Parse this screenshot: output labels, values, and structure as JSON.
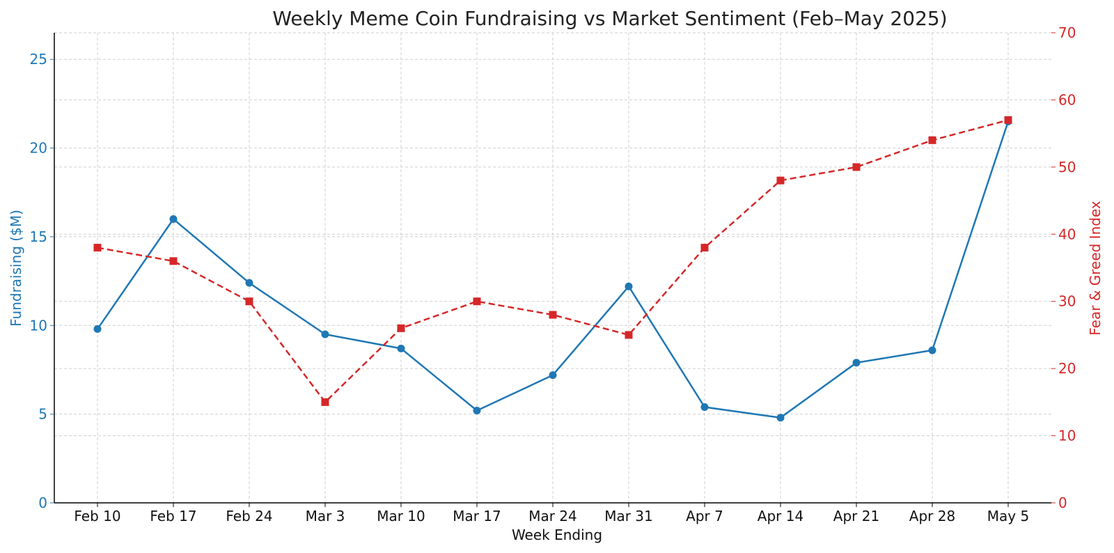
{
  "chart_data": {
    "type": "line",
    "title": "Weekly Meme Coin Fundraising vs Market Sentiment (Feb–May 2025)",
    "xlabel": "Week Ending",
    "ylabel_left": "Fundraising ($M)",
    "ylabel_right": "Fear & Greed Index",
    "categories": [
      "Feb 10",
      "Feb 17",
      "Feb 24",
      "Mar 3",
      "Mar 10",
      "Mar 17",
      "Mar 24",
      "Mar 31",
      "Apr 7",
      "Apr 14",
      "Apr 21",
      "Apr 28",
      "May 5"
    ],
    "ylim_left": [
      0,
      26.5
    ],
    "ylim_right": [
      0,
      70
    ],
    "yticks_left": [
      0,
      5,
      10,
      15,
      20,
      25
    ],
    "yticks_right": [
      0,
      10,
      20,
      30,
      40,
      50,
      60,
      70
    ],
    "grid": true,
    "series": [
      {
        "name": "Fundraising ($M)",
        "axis": "left",
        "color": "#1f77b4",
        "line_style": "solid",
        "marker": "circle",
        "values": [
          9.8,
          16.0,
          12.4,
          9.5,
          8.7,
          5.2,
          7.2,
          12.2,
          5.4,
          4.8,
          7.9,
          8.6,
          21.5
        ]
      },
      {
        "name": "Fear & Greed Index",
        "axis": "right",
        "color": "#d62728",
        "line_style": "dashed",
        "marker": "square",
        "values": [
          38,
          36,
          30,
          15,
          26,
          30,
          28,
          25,
          38,
          48,
          50,
          54,
          57
        ]
      }
    ]
  }
}
